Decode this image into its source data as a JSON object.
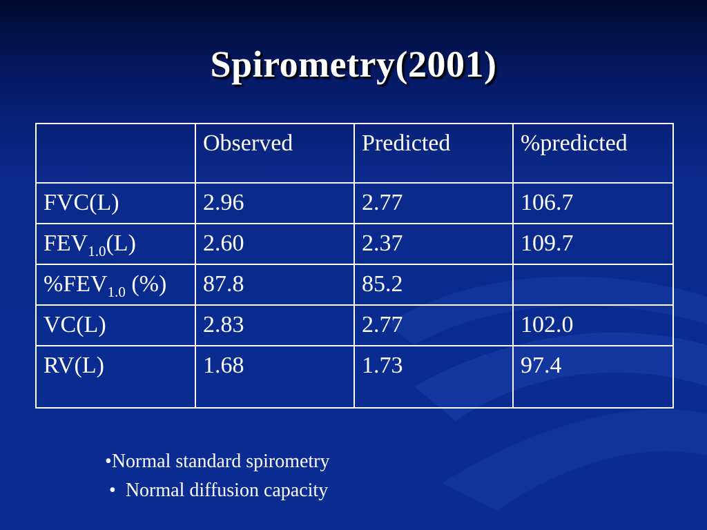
{
  "slide": {
    "title": "Spirometry(2001)"
  },
  "table": {
    "header": [
      "",
      "Observed",
      "Predicted",
      "%predicted"
    ],
    "rows": [
      {
        "label": "FVC(L)",
        "label_main": "FVC(L)",
        "label_sub": "",
        "label_tail": "",
        "observed": "2.96",
        "predicted": "2.77",
        "percent": "106.7"
      },
      {
        "label": "FEV1.0(L)",
        "label_main": "FEV",
        "label_sub": "1.0",
        "label_tail": "(L)",
        "observed": "2.60",
        "predicted": "2.37",
        "percent": "109.7"
      },
      {
        "label": "%FEV1.0 (%)",
        "label_main": "%FEV",
        "label_sub": "1.0",
        "label_tail": " (%)",
        "observed": "87.8",
        "predicted": "85.2",
        "percent": ""
      },
      {
        "label": "VC(L)",
        "label_main": "VC(L)",
        "label_sub": "",
        "label_tail": "",
        "observed": "2.83",
        "predicted": "2.77",
        "percent": "102.0"
      },
      {
        "label": "RV(L)",
        "label_main": "RV(L)",
        "label_sub": "",
        "label_tail": "",
        "observed": "1.68",
        "predicted": "1.73",
        "percent": "97.4"
      }
    ]
  },
  "bullets": [
    {
      "marker": "•",
      "text": "Normal standard spirometry"
    },
    {
      "marker": "•",
      "text": "Normal diffusion capacity"
    }
  ]
}
